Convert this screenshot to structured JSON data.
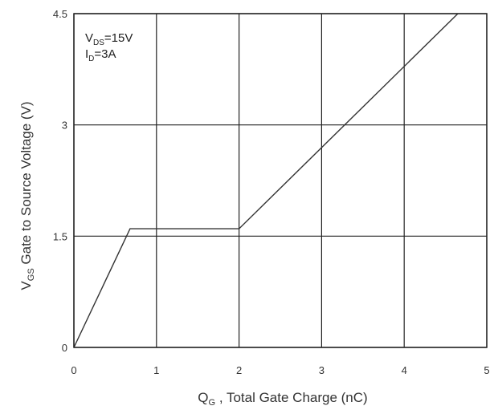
{
  "chart_data": {
    "type": "line",
    "xlabel": {
      "main": "Q",
      "sub": "G",
      "rest": " , Total Gate Charge (nC)"
    },
    "ylabel": {
      "main": "V",
      "sub": "GS",
      "rest": "  Gate to Source Voltage (V)"
    },
    "xlim": [
      0,
      5
    ],
    "ylim": [
      0,
      4.5
    ],
    "x_ticks": [
      0,
      1,
      2,
      3,
      4,
      5
    ],
    "x_tick_labels": [
      "0",
      "1",
      "2",
      "3",
      "4",
      "5"
    ],
    "y_ticks": [
      0,
      1.5,
      3,
      4.5
    ],
    "y_tick_labels": [
      "0",
      "1.5",
      "3",
      "4.5"
    ],
    "grid": true,
    "annotations": [
      {
        "main": "V",
        "sub": "DS",
        "rest": "=15V"
      },
      {
        "main": "I",
        "sub": "D",
        "rest": "=3A"
      }
    ],
    "series": [
      {
        "x": [
          0,
          0.68,
          2.0,
          4.65
        ],
        "y": [
          0,
          1.6,
          1.6,
          4.5
        ]
      }
    ]
  }
}
